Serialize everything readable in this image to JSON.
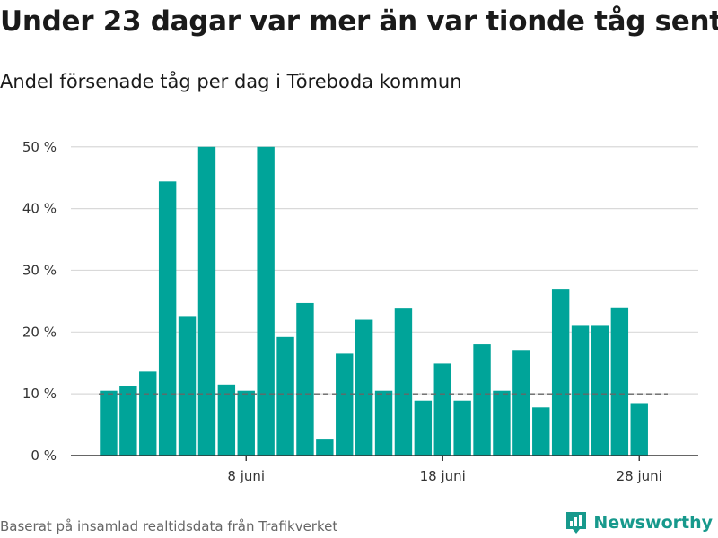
{
  "title": "Under 23 dagar var mer än var tionde tåg sent",
  "subtitle": "Andel försenade tåg per dag i Töreboda kommun",
  "source": "Baserat på insamlad realtidsdata från Trafikverket",
  "brand": "Newsworthy",
  "colors": {
    "bar": "#00a499",
    "brand": "#17998c",
    "grid": "#d9d9d9",
    "axis": "#333333",
    "reference": "#666666"
  },
  "chart_data": {
    "type": "bar",
    "x_type": "date",
    "categories": [
      "2024-06-01",
      "2024-06-02",
      "2024-06-03",
      "2024-06-04",
      "2024-06-05",
      "2024-06-06",
      "2024-06-07",
      "2024-06-08",
      "2024-06-09",
      "2024-06-10",
      "2024-06-11",
      "2024-06-12",
      "2024-06-13",
      "2024-06-14",
      "2024-06-15",
      "2024-06-16",
      "2024-06-17",
      "2024-06-18",
      "2024-06-19",
      "2024-06-20",
      "2024-06-21",
      "2024-06-22",
      "2024-06-23",
      "2024-06-24",
      "2024-06-25",
      "2024-06-26",
      "2024-06-27",
      "2024-06-28"
    ],
    "values": [
      10.5,
      11.3,
      13.6,
      44.4,
      22.6,
      50.0,
      11.5,
      10.5,
      50.0,
      19.2,
      24.7,
      2.6,
      16.5,
      22.0,
      10.5,
      23.8,
      8.9,
      14.9,
      8.9,
      18.0,
      10.5,
      17.1,
      7.8,
      27.0,
      21.0,
      21.0,
      24.0,
      8.5
    ],
    "ylim": [
      0,
      52
    ],
    "yticks": [
      0,
      10,
      20,
      30,
      40,
      50
    ],
    "ytick_labels": [
      "0 %",
      "10 %",
      "20 %",
      "30 %",
      "40 %",
      "50 %"
    ],
    "xticks": [
      "2024-06-08",
      "2024-06-18",
      "2024-06-28"
    ],
    "xtick_labels": [
      "8 juni",
      "18 juni",
      "28 juni"
    ],
    "reference_line": {
      "value": 10,
      "style": "dashed"
    },
    "grid": true,
    "xlabel": "",
    "ylabel": ""
  }
}
